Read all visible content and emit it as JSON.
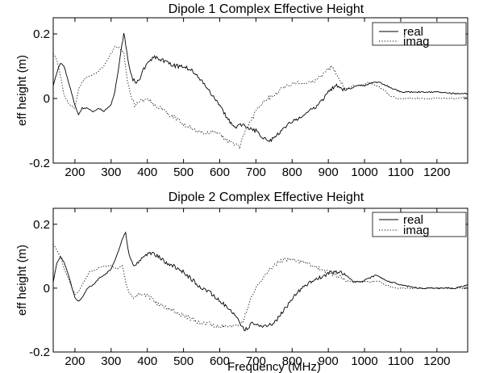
{
  "chart_data": [
    {
      "type": "line",
      "title": "Dipole 1 Complex Effective Height",
      "xlabel": "",
      "ylabel": "eff height (m)",
      "xlim": [
        140,
        1285
      ],
      "ylim": [
        -0.2,
        0.25
      ],
      "xticks": [
        200,
        300,
        400,
        500,
        600,
        700,
        800,
        900,
        1000,
        1100,
        1200
      ],
      "yticks": [
        -0.2,
        0,
        0.2
      ],
      "xtick_labels": [
        "200",
        "300",
        "400",
        "500",
        "600",
        "700",
        "800",
        "900",
        "1000",
        "1100",
        "1200"
      ],
      "ytick_labels": [
        "-0.2",
        "0",
        "0.2"
      ],
      "grid": false,
      "legend": "top-right",
      "colors": {
        "real": "#000000",
        "imag": "#000000"
      },
      "series": [
        {
          "name": "real",
          "style": "solid",
          "x": [
            140,
            150,
            160,
            170,
            185,
            200,
            210,
            220,
            235,
            250,
            265,
            280,
            300,
            310,
            320,
            330,
            335,
            340,
            350,
            360,
            370,
            380,
            390,
            400,
            420,
            440,
            460,
            480,
            500,
            520,
            540,
            560,
            580,
            600,
            620,
            640,
            660,
            680,
            700,
            720,
            740,
            760,
            780,
            800,
            820,
            840,
            860,
            880,
            900,
            920,
            940,
            960,
            980,
            1000,
            1020,
            1040,
            1060,
            1080,
            1100,
            1150,
            1200,
            1250,
            1285
          ],
          "values": [
            0.04,
            0.08,
            0.11,
            0.1,
            0.04,
            -0.02,
            -0.05,
            -0.03,
            -0.03,
            -0.04,
            -0.03,
            -0.04,
            -0.02,
            0.02,
            0.09,
            0.17,
            0.2,
            0.17,
            0.1,
            0.06,
            0.05,
            0.06,
            0.09,
            0.11,
            0.13,
            0.12,
            0.11,
            0.1,
            0.1,
            0.09,
            0.07,
            0.04,
            0.01,
            -0.02,
            -0.06,
            -0.09,
            -0.08,
            -0.09,
            -0.1,
            -0.12,
            -0.13,
            -0.11,
            -0.09,
            -0.07,
            -0.06,
            -0.04,
            -0.03,
            -0.01,
            0.02,
            0.04,
            0.03,
            0.03,
            0.04,
            0.04,
            0.05,
            0.05,
            0.04,
            0.03,
            0.02,
            0.02,
            0.02,
            0.015,
            0.015
          ]
        },
        {
          "name": "imag",
          "style": "dotted",
          "x": [
            140,
            150,
            160,
            170,
            185,
            200,
            210,
            225,
            240,
            260,
            280,
            300,
            310,
            320,
            335,
            345,
            355,
            365,
            380,
            400,
            420,
            440,
            460,
            480,
            500,
            520,
            540,
            560,
            580,
            600,
            620,
            640,
            655,
            670,
            690,
            710,
            730,
            750,
            770,
            790,
            810,
            830,
            850,
            870,
            890,
            910,
            930,
            950,
            970,
            990,
            1010,
            1030,
            1050,
            1070,
            1090,
            1110,
            1150,
            1200,
            1250,
            1285
          ],
          "values": [
            0.14,
            0.12,
            0.07,
            0.01,
            -0.02,
            -0.03,
            0.03,
            0.06,
            0.07,
            0.08,
            0.1,
            0.14,
            0.16,
            0.16,
            0.14,
            0.06,
            0.01,
            -0.02,
            -0.01,
            0.0,
            -0.02,
            -0.03,
            -0.05,
            -0.06,
            -0.08,
            -0.09,
            -0.1,
            -0.11,
            -0.1,
            -0.11,
            -0.13,
            -0.14,
            -0.15,
            -0.1,
            -0.06,
            -0.02,
            0.0,
            0.01,
            0.03,
            0.04,
            0.05,
            0.05,
            0.05,
            0.06,
            0.08,
            0.1,
            0.06,
            0.03,
            0.04,
            0.04,
            0.05,
            0.04,
            0.03,
            0.01,
            0.0,
            0.0,
            0.0,
            0.0,
            0.0,
            0.005
          ]
        }
      ]
    },
    {
      "type": "line",
      "title": "Dipole 2 Complex Effective Height",
      "xlabel": "Frequency (MHz)",
      "ylabel": "eff height (m)",
      "xlim": [
        140,
        1285
      ],
      "ylim": [
        -0.2,
        0.25
      ],
      "xticks": [
        200,
        300,
        400,
        500,
        600,
        700,
        800,
        900,
        1000,
        1100,
        1200
      ],
      "yticks": [
        -0.2,
        0,
        0.2
      ],
      "xtick_labels": [
        "200",
        "300",
        "400",
        "500",
        "600",
        "700",
        "800",
        "900",
        "1000",
        "1100",
        "1200"
      ],
      "ytick_labels": [
        "-0.2",
        "0",
        "0.2"
      ],
      "grid": false,
      "legend": "top-right",
      "colors": {
        "real": "#000000",
        "imag": "#000000"
      },
      "series": [
        {
          "name": "real",
          "style": "solid",
          "x": [
            140,
            150,
            160,
            170,
            185,
            200,
            210,
            220,
            235,
            250,
            265,
            280,
            300,
            315,
            330,
            340,
            350,
            360,
            375,
            390,
            410,
            430,
            450,
            470,
            490,
            510,
            530,
            550,
            570,
            590,
            610,
            630,
            650,
            670,
            690,
            710,
            730,
            750,
            770,
            790,
            810,
            830,
            850,
            870,
            890,
            910,
            930,
            950,
            970,
            990,
            1010,
            1030,
            1050,
            1070,
            1100,
            1150,
            1200,
            1250,
            1285
          ],
          "values": [
            0.02,
            0.08,
            0.1,
            0.08,
            0.03,
            -0.03,
            -0.04,
            -0.03,
            -0.0,
            0.01,
            0.03,
            0.04,
            0.06,
            0.1,
            0.15,
            0.17,
            0.1,
            0.07,
            0.08,
            0.1,
            0.11,
            0.1,
            0.08,
            0.07,
            0.06,
            0.04,
            0.02,
            0.0,
            -0.01,
            -0.03,
            -0.05,
            -0.07,
            -0.1,
            -0.13,
            -0.11,
            -0.12,
            -0.12,
            -0.11,
            -0.08,
            -0.05,
            -0.02,
            0.0,
            0.02,
            0.03,
            0.04,
            0.05,
            0.05,
            0.04,
            0.02,
            0.02,
            0.03,
            0.04,
            0.03,
            0.02,
            0.01,
            0.0,
            0.0,
            0.0,
            0.01
          ]
        },
        {
          "name": "imag",
          "style": "dotted",
          "x": [
            140,
            150,
            160,
            170,
            185,
            200,
            210,
            225,
            240,
            260,
            280,
            300,
            315,
            330,
            340,
            350,
            360,
            375,
            390,
            410,
            430,
            450,
            470,
            490,
            510,
            530,
            550,
            570,
            590,
            610,
            630,
            650,
            665,
            680,
            700,
            720,
            740,
            760,
            780,
            800,
            820,
            840,
            860,
            880,
            900,
            920,
            940,
            960,
            980,
            1000,
            1020,
            1040,
            1060,
            1080,
            1100,
            1150,
            1200,
            1250,
            1285
          ],
          "values": [
            0.14,
            0.12,
            0.1,
            0.06,
            0.02,
            -0.02,
            -0.01,
            0.02,
            0.05,
            0.06,
            0.07,
            0.07,
            0.06,
            0.07,
            0.02,
            -0.02,
            -0.03,
            -0.02,
            -0.02,
            -0.03,
            -0.05,
            -0.06,
            -0.07,
            -0.08,
            -0.09,
            -0.1,
            -0.11,
            -0.11,
            -0.12,
            -0.12,
            -0.12,
            -0.12,
            -0.1,
            -0.05,
            0.0,
            0.03,
            0.06,
            0.08,
            0.09,
            0.09,
            0.08,
            0.08,
            0.07,
            0.06,
            0.05,
            0.04,
            0.03,
            0.02,
            0.02,
            0.02,
            0.02,
            0.02,
            0.01,
            0.0,
            0.0,
            0.0,
            0.0,
            0.0,
            0.0
          ]
        }
      ]
    }
  ]
}
